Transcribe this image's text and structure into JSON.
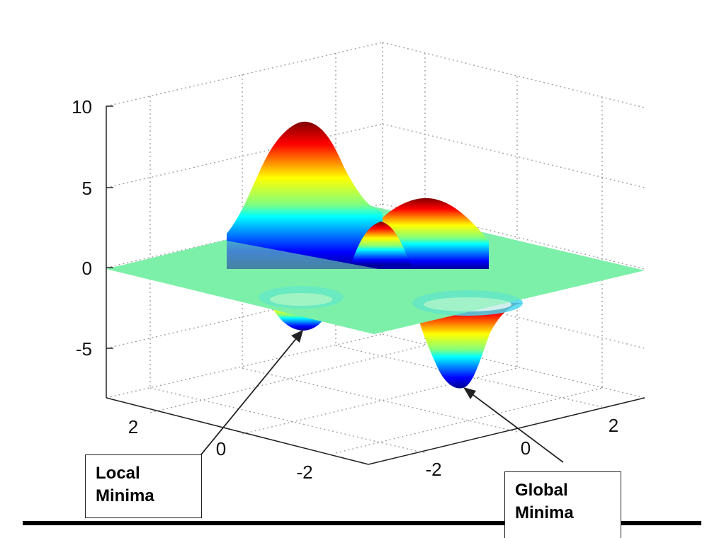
{
  "chart_data": {
    "type": "surface",
    "title": "",
    "zlabel": "",
    "z_ticks": [
      10,
      5,
      0,
      -5
    ],
    "x_ticks": [
      2,
      0,
      -2
    ],
    "y_ticks": [
      -2,
      0,
      2
    ],
    "zlim": [
      -8,
      10
    ],
    "xlim": [
      -3,
      3
    ],
    "ylim": [
      -3,
      3
    ],
    "colormap": "jet",
    "grid": true,
    "features": [
      {
        "kind": "maximum",
        "z": 8.9
      },
      {
        "kind": "local_maximum",
        "z": 3.7
      },
      {
        "kind": "local_maximum",
        "z": 2.7
      },
      {
        "kind": "minimum",
        "z": -3.5
      },
      {
        "kind": "minimum",
        "z": -7.6
      }
    ]
  },
  "annotations": {
    "local": {
      "line1": "Local",
      "line2": "Minima"
    },
    "global": {
      "line1": "Global",
      "line2": "Minima"
    }
  }
}
